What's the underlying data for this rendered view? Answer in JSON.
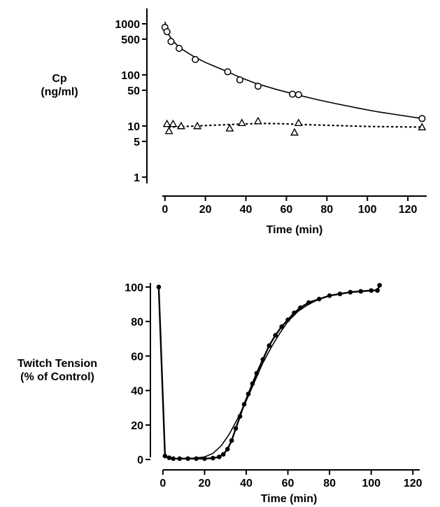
{
  "chart_data": [
    {
      "type": "scatter",
      "title": "",
      "xlabel": "Time (min)",
      "ylabel": [
        "Cp",
        "(ng/ml)"
      ],
      "yscale": "log",
      "xlim": [
        -2,
        130
      ],
      "ylim": [
        0.75,
        2000
      ],
      "xticks": [
        0,
        20,
        40,
        60,
        80,
        100,
        120
      ],
      "xtick_labels": [
        "0",
        "20",
        "40",
        "60",
        "80",
        "100",
        "120"
      ],
      "yticks": [
        1,
        5,
        10,
        50,
        100,
        500,
        1000
      ],
      "ytick_labels": [
        "1",
        "5",
        "10",
        "50",
        "100",
        "500",
        "1000"
      ],
      "grid": false,
      "series": [
        {
          "marker": "circle",
          "points": [
            [
              0,
              850
            ],
            [
              1,
              700
            ],
            [
              3,
              450
            ],
            [
              7,
              330
            ],
            [
              15,
              200
            ],
            [
              31,
              115
            ],
            [
              37,
              80
            ],
            [
              46,
              60
            ],
            [
              63,
              42
            ],
            [
              66,
              41
            ],
            [
              127,
              14
            ]
          ]
        },
        {
          "marker": "triangle",
          "points": [
            [
              1,
              11
            ],
            [
              2,
              8
            ],
            [
              4,
              11
            ],
            [
              8,
              10
            ],
            [
              16,
              10
            ],
            [
              32,
              9
            ],
            [
              38,
              11.5
            ],
            [
              46,
              12.5
            ],
            [
              64,
              7.5
            ],
            [
              66,
              11.5
            ],
            [
              127,
              9.5
            ]
          ]
        }
      ],
      "fit_lines": [
        {
          "style": "solid",
          "points": [
            [
              0,
              1100
            ],
            [
              1,
              760
            ],
            [
              2,
              600
            ],
            [
              4,
              460
            ],
            [
              7,
              350
            ],
            [
              10,
              290
            ],
            [
              15,
              220
            ],
            [
              20,
              175
            ],
            [
              25,
              145
            ],
            [
              30,
              120
            ],
            [
              37,
              90
            ],
            [
              45,
              68
            ],
            [
              55,
              52
            ],
            [
              65,
              41
            ],
            [
              75,
              33
            ],
            [
              85,
              27
            ],
            [
              95,
              22.5
            ],
            [
              105,
              19
            ],
            [
              115,
              16.5
            ],
            [
              127,
              14
            ]
          ]
        },
        {
          "style": "dotted",
          "points": [
            [
              2,
              9.5
            ],
            [
              10,
              9.8
            ],
            [
              20,
              10.2
            ],
            [
              30,
              10.6
            ],
            [
              40,
              11
            ],
            [
              50,
              11.2
            ],
            [
              60,
              11
            ],
            [
              70,
              10.6
            ],
            [
              85,
              10.2
            ],
            [
              100,
              9.8
            ],
            [
              127,
              9.5
            ]
          ]
        }
      ]
    },
    {
      "type": "line",
      "title": "",
      "xlabel": "Time (min)",
      "ylabel": [
        "Twitch Tension",
        "(% of Control)"
      ],
      "xlim": [
        -5,
        130
      ],
      "ylim": [
        -4,
        104
      ],
      "xticks": [
        0,
        20,
        40,
        60,
        80,
        100,
        120
      ],
      "xtick_labels": [
        "0",
        "20",
        "40",
        "60",
        "80",
        "100",
        "120"
      ],
      "yticks": [
        0,
        20,
        40,
        60,
        80,
        100
      ],
      "ytick_labels": [
        "0",
        "20",
        "40",
        "60",
        "80",
        "100"
      ],
      "grid": false,
      "series": [
        {
          "style": "dots",
          "points": [
            [
              -2,
              100
            ],
            [
              1,
              2
            ],
            [
              3,
              1
            ],
            [
              5,
              0.5
            ],
            [
              8,
              0.5
            ],
            [
              12,
              0.5
            ],
            [
              16,
              0.5
            ],
            [
              20,
              0.5
            ],
            [
              24,
              0.8
            ],
            [
              27,
              1.5
            ],
            [
              29,
              3
            ],
            [
              31,
              6
            ],
            [
              33,
              11
            ],
            [
              35,
              18
            ],
            [
              37,
              25
            ],
            [
              39,
              32
            ],
            [
              41,
              38
            ],
            [
              43,
              44
            ],
            [
              45,
              50
            ],
            [
              48,
              58
            ],
            [
              51,
              66
            ],
            [
              54,
              72
            ],
            [
              57,
              77
            ],
            [
              60,
              81
            ],
            [
              63,
              85
            ],
            [
              66,
              88
            ],
            [
              70,
              91
            ],
            [
              75,
              93
            ],
            [
              80,
              95
            ],
            [
              85,
              96
            ],
            [
              90,
              97
            ],
            [
              95,
              97.5
            ],
            [
              100,
              98
            ],
            [
              103,
              98
            ],
            [
              104,
              101
            ]
          ]
        },
        {
          "style": "solid",
          "points": [
            [
              -2,
              100
            ],
            [
              1,
              1.5
            ],
            [
              5,
              0.5
            ],
            [
              15,
              0.8
            ],
            [
              20,
              1.5
            ],
            [
              24,
              3.5
            ],
            [
              28,
              8
            ],
            [
              32,
              15
            ],
            [
              36,
              24
            ],
            [
              40,
              34
            ],
            [
              44,
              45
            ],
            [
              48,
              56
            ],
            [
              52,
              65
            ],
            [
              56,
              73
            ],
            [
              60,
              80
            ],
            [
              65,
              86
            ],
            [
              70,
              90
            ],
            [
              75,
              93
            ],
            [
              80,
              95
            ],
            [
              90,
              97
            ],
            [
              100,
              98
            ],
            [
              104,
              98.5
            ]
          ]
        }
      ]
    }
  ]
}
